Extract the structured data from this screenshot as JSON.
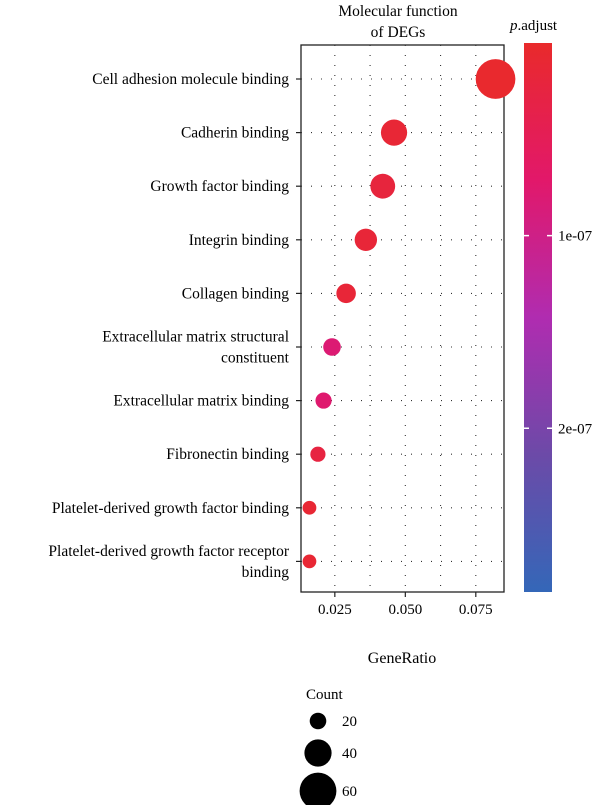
{
  "chart_data": {
    "type": "scatter",
    "title_lines": [
      "Molecular function",
      "of DEGs"
    ],
    "xlabel": "GeneRatio",
    "ylabel": "",
    "xlim": [
      0.013,
      0.085
    ],
    "xticks": [
      0.025,
      0.05,
      0.075
    ],
    "xtick_labels": [
      "0.025",
      "0.050",
      "0.075"
    ],
    "grid": true,
    "categories": [
      [
        "Cell adhesion molecule binding"
      ],
      [
        "Cadherin binding"
      ],
      [
        "Growth factor binding"
      ],
      [
        "Integrin binding"
      ],
      [
        "Collagen binding"
      ],
      [
        "Extracellular matrix structural",
        "constituent"
      ],
      [
        "Extracellular matrix binding"
      ],
      [
        "Fibronectin binding"
      ],
      [
        "Platelet-derived growth factor binding"
      ],
      [
        "Platelet-derived growth factor receptor",
        "binding"
      ]
    ],
    "points": [
      {
        "x": 0.082,
        "count": 66,
        "padj": 3e-09
      },
      {
        "x": 0.046,
        "count": 38,
        "padj": 1.2e-08
      },
      {
        "x": 0.042,
        "count": 35,
        "padj": 2e-08
      },
      {
        "x": 0.036,
        "count": 30,
        "padj": 1.5e-08
      },
      {
        "x": 0.029,
        "count": 24,
        "padj": 1.5e-08
      },
      {
        "x": 0.024,
        "count": 20,
        "padj": 8e-08
      },
      {
        "x": 0.021,
        "count": 17,
        "padj": 7.5e-08
      },
      {
        "x": 0.019,
        "count": 15,
        "padj": 2.5e-08
      },
      {
        "x": 0.016,
        "count": 12,
        "padj": 1e-08
      },
      {
        "x": 0.016,
        "count": 12,
        "padj": 1e-08
      }
    ],
    "color_legend": {
      "title_italic": "p",
      "title_rest": ".adjust",
      "range": [
        0,
        2.85e-07
      ],
      "ticks": [
        1e-07,
        2e-07
      ],
      "tick_labels": [
        "1e-07",
        "2e-07"
      ],
      "colors": [
        "#e92a2b",
        "#e2186a",
        "#b02cb0",
        "#6c4aa8",
        "#3467b8"
      ]
    },
    "size_legend": {
      "title": "Count",
      "values": [
        20,
        40,
        60
      ],
      "labels": [
        "20",
        "40",
        "60"
      ]
    }
  }
}
